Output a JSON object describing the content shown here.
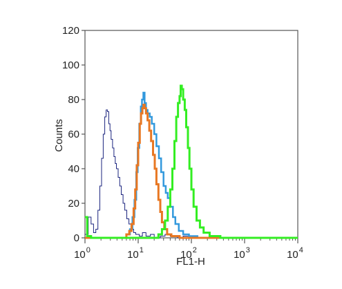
{
  "chart_data": {
    "type": "line",
    "xlabel": "FL1-H",
    "ylabel": "Counts",
    "xscale": "log",
    "xlim": [
      1,
      10000
    ],
    "ylim": [
      0,
      120
    ],
    "y_ticks": [
      "0",
      "20",
      "40",
      "60",
      "80",
      "100",
      "120"
    ],
    "x_ticks": [
      {
        "base": "10",
        "exp": "0"
      },
      {
        "base": "10",
        "exp": "1"
      },
      {
        "base": "10",
        "exp": "2"
      },
      {
        "base": "10",
        "exp": "3"
      },
      {
        "base": "10",
        "exp": "4"
      }
    ],
    "grid": false,
    "legend": "none",
    "series": [
      {
        "color": "#1a237e",
        "stroke": 1,
        "points": [
          [
            1.0,
            2
          ],
          [
            1.15,
            12
          ],
          [
            1.3,
            8
          ],
          [
            1.45,
            3
          ],
          [
            1.6,
            5
          ],
          [
            1.75,
            16
          ],
          [
            1.9,
            30
          ],
          [
            2.05,
            46
          ],
          [
            2.2,
            60
          ],
          [
            2.35,
            70
          ],
          [
            2.5,
            74
          ],
          [
            2.65,
            73
          ],
          [
            2.8,
            66
          ],
          [
            2.95,
            62
          ],
          [
            3.1,
            57
          ],
          [
            3.3,
            52
          ],
          [
            3.5,
            47
          ],
          [
            3.7,
            43
          ],
          [
            3.9,
            40
          ],
          [
            4.2,
            35
          ],
          [
            4.5,
            30
          ],
          [
            4.8,
            25
          ],
          [
            5.2,
            20
          ],
          [
            5.6,
            16
          ],
          [
            6.1,
            11
          ],
          [
            6.7,
            8
          ],
          [
            7.4,
            5
          ],
          [
            8.2,
            3
          ],
          [
            9.0,
            2
          ],
          [
            10.5,
            1
          ],
          [
            12.0,
            3
          ],
          [
            14.0,
            1
          ],
          [
            17.0,
            2
          ],
          [
            20.0,
            0
          ],
          [
            26.0,
            1
          ],
          [
            32.0,
            2
          ],
          [
            40.0,
            1
          ],
          [
            55.0,
            0
          ],
          [
            70.0,
            1
          ],
          [
            100.0,
            0
          ],
          [
            300.0,
            0
          ],
          [
            10000.0,
            0
          ]
        ]
      },
      {
        "color": "#3399dd",
        "stroke": 2.5,
        "points": [
          [
            1.0,
            0
          ],
          [
            5.0,
            0
          ],
          [
            6.0,
            2
          ],
          [
            7.0,
            5
          ],
          [
            7.8,
            12
          ],
          [
            8.5,
            22
          ],
          [
            9.2,
            38
          ],
          [
            9.8,
            52
          ],
          [
            10.5,
            66
          ],
          [
            11.2,
            76
          ],
          [
            11.8,
            80
          ],
          [
            12.5,
            84
          ],
          [
            13.2,
            78
          ],
          [
            14.0,
            74
          ],
          [
            15.0,
            72
          ],
          [
            16.5,
            70
          ],
          [
            18.0,
            66
          ],
          [
            20.0,
            60
          ],
          [
            22.0,
            53
          ],
          [
            24.5,
            46
          ],
          [
            27.0,
            38
          ],
          [
            30.0,
            30
          ],
          [
            33.0,
            26
          ],
          [
            36.0,
            23
          ],
          [
            40.0,
            18
          ],
          [
            45.0,
            12
          ],
          [
            50.0,
            8
          ],
          [
            58.0,
            4
          ],
          [
            70.0,
            2
          ],
          [
            90.0,
            1
          ],
          [
            130.0,
            0
          ],
          [
            10000.0,
            0
          ]
        ]
      },
      {
        "color": "#e87722",
        "stroke": 3,
        "points": [
          [
            1.0,
            0
          ],
          [
            5.0,
            0
          ],
          [
            6.0,
            2
          ],
          [
            6.8,
            4
          ],
          [
            7.5,
            8
          ],
          [
            8.2,
            17
          ],
          [
            8.8,
            28
          ],
          [
            9.4,
            42
          ],
          [
            10.0,
            55
          ],
          [
            10.7,
            66
          ],
          [
            11.3,
            72
          ],
          [
            12.0,
            75
          ],
          [
            12.6,
            77
          ],
          [
            13.2,
            75
          ],
          [
            14.0,
            72
          ],
          [
            15.0,
            68
          ],
          [
            16.2,
            62
          ],
          [
            17.5,
            56
          ],
          [
            19.0,
            48
          ],
          [
            20.5,
            40
          ],
          [
            22.0,
            31
          ],
          [
            24.0,
            22
          ],
          [
            26.0,
            15
          ],
          [
            28.0,
            9
          ],
          [
            31.0,
            5
          ],
          [
            35.0,
            2
          ],
          [
            42.0,
            1
          ],
          [
            60.0,
            0
          ],
          [
            10000.0,
            0
          ]
        ]
      },
      {
        "color": "#33ee22",
        "stroke": 3,
        "points": [
          [
            1.0,
            12
          ],
          [
            1.1,
            1
          ],
          [
            1.3,
            0
          ],
          [
            20.0,
            0
          ],
          [
            24.0,
            2
          ],
          [
            28.0,
            5
          ],
          [
            32.0,
            10
          ],
          [
            36.0,
            18
          ],
          [
            40.0,
            28
          ],
          [
            44.0,
            40
          ],
          [
            48.0,
            56
          ],
          [
            52.0,
            70
          ],
          [
            56.0,
            78
          ],
          [
            60.0,
            82
          ],
          [
            63.0,
            88
          ],
          [
            66.0,
            86
          ],
          [
            70.0,
            80
          ],
          [
            75.0,
            74
          ],
          [
            80.0,
            64
          ],
          [
            86.0,
            52
          ],
          [
            92.0,
            40
          ],
          [
            100.0,
            28
          ],
          [
            110.0,
            18
          ],
          [
            125.0,
            10
          ],
          [
            145.0,
            6
          ],
          [
            170.0,
            3
          ],
          [
            220.0,
            1
          ],
          [
            350.0,
            0
          ],
          [
            10000.0,
            0
          ]
        ]
      }
    ]
  }
}
